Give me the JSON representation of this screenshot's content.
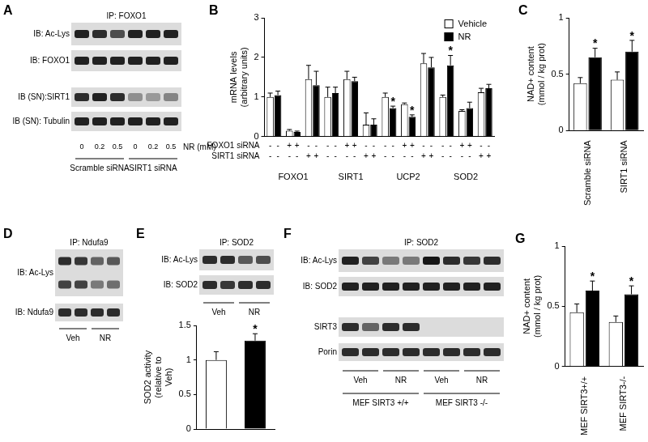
{
  "blots": [
    {
      "panel": "A",
      "ip": "IP: FOXO1",
      "rows": [
        {
          "label": "IB: Ac-Lys",
          "bands": [
            0.85,
            0.8,
            0.65,
            0.85,
            0.85,
            0.85
          ]
        },
        {
          "label": "IB: FOXO1",
          "bands": [
            0.85,
            0.85,
            0.85,
            0.85,
            0.85,
            0.85
          ]
        },
        {
          "label": "IB (SN):SIRT1",
          "bands": [
            0.8,
            0.85,
            0.8,
            0.35,
            0.3,
            0.4
          ]
        },
        {
          "label": "IB (SN): Tubulin",
          "bands": [
            0.85,
            0.85,
            0.85,
            0.85,
            0.85,
            0.85
          ]
        }
      ],
      "lane_values": {
        "label": "NR (mM)",
        "values": [
          0,
          0.2,
          0.5,
          0,
          0.2,
          0.5
        ]
      },
      "groups": [
        "Scramble siRNA",
        "SIRT1 siRNA"
      ]
    },
    {
      "panel": "D",
      "ip": "IP: Ndufa9",
      "rows": [
        {
          "label": "IB: Ac-Lys",
          "bands": [
            [
              0.8,
              0.75,
              0.55,
              0.6
            ],
            [
              0.7,
              0.7,
              0.45,
              0.5
            ]
          ]
        },
        {
          "label": "IB: Ndufa9",
          "bands": [
            0.8,
            0.8,
            0.8,
            0.8
          ]
        }
      ],
      "groups": [
        "Veh",
        "NR"
      ]
    },
    {
      "panel": "E",
      "ip": "IP: SOD2",
      "rows": [
        {
          "label": "IB: Ac-Lys",
          "bands": [
            0.8,
            0.8,
            0.6,
            0.65
          ]
        },
        {
          "label": "IB: SOD2",
          "bands": [
            0.8,
            0.75,
            0.8,
            0.8
          ]
        }
      ],
      "groups": [
        "Veh",
        "NR"
      ]
    },
    {
      "panel": "F",
      "ip": "IP: SOD2",
      "rows": [
        {
          "label": "IB: Ac-Lys",
          "bands": [
            0.85,
            0.7,
            0.45,
            0.45,
            0.9,
            0.8,
            0.75,
            0.8
          ]
        },
        {
          "label": "IB: SOD2",
          "bands": [
            0.85,
            0.85,
            0.85,
            0.85,
            0.85,
            0.85,
            0.85,
            0.85
          ]
        },
        {
          "label": "SIRT3",
          "bands": [
            0.8,
            0.55,
            0.8,
            0.8,
            0,
            0,
            0,
            0
          ]
        },
        {
          "label": "Porin",
          "bands": [
            0.8,
            0.8,
            0.8,
            0.8,
            0.8,
            0.8,
            0.8,
            0.8
          ]
        }
      ],
      "groups": [
        "Veh",
        "NR",
        "Veh",
        "NR"
      ],
      "supergroups": [
        "MEF SIRT3 +/+",
        "MEF SIRT3 -/-"
      ]
    }
  ],
  "chart_data": [
    {
      "panel": "B",
      "type": "bar",
      "y_label": [
        "mRNA levels",
        "(arbitrary units)"
      ],
      "categories": [
        null,
        "FOXO1",
        null,
        null,
        "SIRT1",
        null,
        null,
        "UCP2",
        null,
        null,
        "SOD2",
        null
      ],
      "series": [
        {
          "name": "Vehicle",
          "color": "#ffffff",
          "values": [
            1.0,
            0.15,
            1.45,
            1.0,
            1.45,
            0.3,
            1.0,
            0.82,
            1.85,
            1.0,
            0.65,
            1.12
          ],
          "errors": [
            0.1,
            0.03,
            0.35,
            0.25,
            0.2,
            0.3,
            0.1,
            0.03,
            0.25,
            0.05,
            0.03,
            0.1
          ]
        },
        {
          "name": "NR",
          "color": "#000000",
          "values": [
            1.05,
            0.12,
            1.3,
            1.1,
            1.4,
            0.3,
            0.72,
            0.5,
            1.75,
            1.8,
            0.72,
            1.22
          ],
          "errors": [
            0.1,
            0.02,
            0.35,
            0.15,
            0.1,
            0.15,
            0.05,
            0.05,
            0.25,
            0.25,
            0.15,
            0.1
          ],
          "significance": [
            null,
            null,
            null,
            null,
            null,
            null,
            "*",
            "*",
            null,
            "*",
            null,
            null
          ]
        }
      ],
      "conditions": [
        {
          "label": "FOXO1 siRNA",
          "marks": [
            "-",
            "-",
            "+",
            "+",
            "-",
            "-",
            "-",
            "-",
            "+",
            "+",
            "-",
            "-",
            "-",
            "-",
            "+",
            "+",
            "-",
            "-",
            "-",
            "-",
            "+",
            "+",
            "-",
            "-"
          ]
        },
        {
          "label": "SIRT1 siRNA",
          "marks": [
            "-",
            "-",
            "-",
            "-",
            "+",
            "+",
            "-",
            "-",
            "-",
            "-",
            "+",
            "+",
            "-",
            "-",
            "-",
            "-",
            "+",
            "+",
            "-",
            "-",
            "-",
            "-",
            "+",
            "+"
          ]
        }
      ],
      "ylim": [
        0,
        3
      ],
      "yticks": [
        0,
        1,
        2,
        3
      ],
      "grid": false,
      "legend": "upper right"
    },
    {
      "panel": "C",
      "type": "bar",
      "y_label": [
        "NAD+ content",
        "(mmol / kg prot)"
      ],
      "categories": [
        "Scramble siRNA",
        "SIRT1 siRNA"
      ],
      "series": [
        {
          "name": "Vehicle",
          "color": "#ffffff",
          "values": [
            0.42,
            0.45
          ],
          "errors": [
            0.05,
            0.07
          ]
        },
        {
          "name": "NR",
          "color": "#000000",
          "values": [
            0.65,
            0.7
          ],
          "errors": [
            0.08,
            0.1
          ],
          "significance": [
            "*",
            "*"
          ]
        }
      ],
      "ylim": [
        0,
        1
      ],
      "yticks": [
        0,
        0.5,
        1
      ],
      "grid": false
    },
    {
      "type": "bar",
      "y_label": [
        "SOD2 activity",
        "(relative to",
        "Veh)"
      ],
      "categories": [
        null,
        null
      ],
      "values": [
        1.0,
        1.28
      ],
      "colors": [
        "#ffffff",
        "#000000"
      ],
      "errors": [
        0.12,
        0.1
      ],
      "significance": [
        null,
        "*"
      ],
      "ylim": [
        0,
        1.5
      ],
      "yticks": [
        0,
        0.5,
        1,
        1.5
      ],
      "grid": false,
      "tick_labels": "y"
    },
    {
      "panel": "G",
      "type": "bar",
      "y_label": [
        "NAD+ content",
        "(mmol / kg prot)"
      ],
      "categories": [
        "MEF SIRT3+/+",
        "MEF SIRT3-/-"
      ],
      "series": [
        {
          "name": "Vehicle",
          "color": "#ffffff",
          "values": [
            0.45,
            0.37
          ],
          "errors": [
            0.07,
            0.05
          ]
        },
        {
          "name": "NR",
          "color": "#000000",
          "values": [
            0.63,
            0.6
          ],
          "errors": [
            0.08,
            0.07
          ],
          "significance": [
            "*",
            "*"
          ]
        }
      ],
      "ylim": [
        0,
        1
      ],
      "yticks": [
        0,
        0.5,
        1
      ],
      "grid": false
    }
  ]
}
